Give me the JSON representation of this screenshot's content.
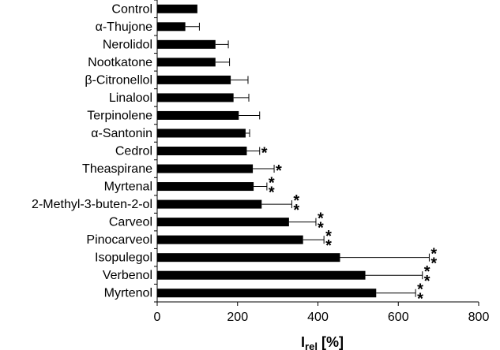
{
  "chart_data": {
    "type": "bar",
    "orientation": "horizontal",
    "xlabel_main": "I",
    "xlabel_sub": "rel",
    "xlabel_unit": "[%]",
    "xlim": [
      0,
      800
    ],
    "xticks": [
      0,
      200,
      400,
      600,
      800
    ],
    "grid": false,
    "legend": "none",
    "bar_color": "#000000",
    "categories": [
      "Control",
      "α-Thujone",
      "Nerolidol",
      "Nootkatone",
      "β-Citronellol",
      "Linalool",
      "Terpinolene",
      "α-Santonin",
      "Cedrol",
      "Theaspirane",
      "Myrtenal",
      "2-Methyl-3-buten-2-ol",
      "Carveol",
      "Pinocarveol",
      "Isopulegol",
      "Verbenol",
      "Myrtenol"
    ],
    "values": [
      100,
      70,
      145,
      145,
      183,
      190,
      203,
      220,
      223,
      238,
      240,
      260,
      328,
      363,
      455,
      518,
      545
    ],
    "error": [
      0,
      35,
      32,
      35,
      43,
      38,
      52,
      10,
      32,
      53,
      33,
      75,
      67,
      52,
      222,
      142,
      98
    ],
    "significance": [
      "",
      "",
      "",
      "",
      "",
      "",
      "",
      "",
      "*",
      "*",
      "**",
      "**",
      "**",
      "**",
      "**",
      "**",
      "**"
    ]
  }
}
